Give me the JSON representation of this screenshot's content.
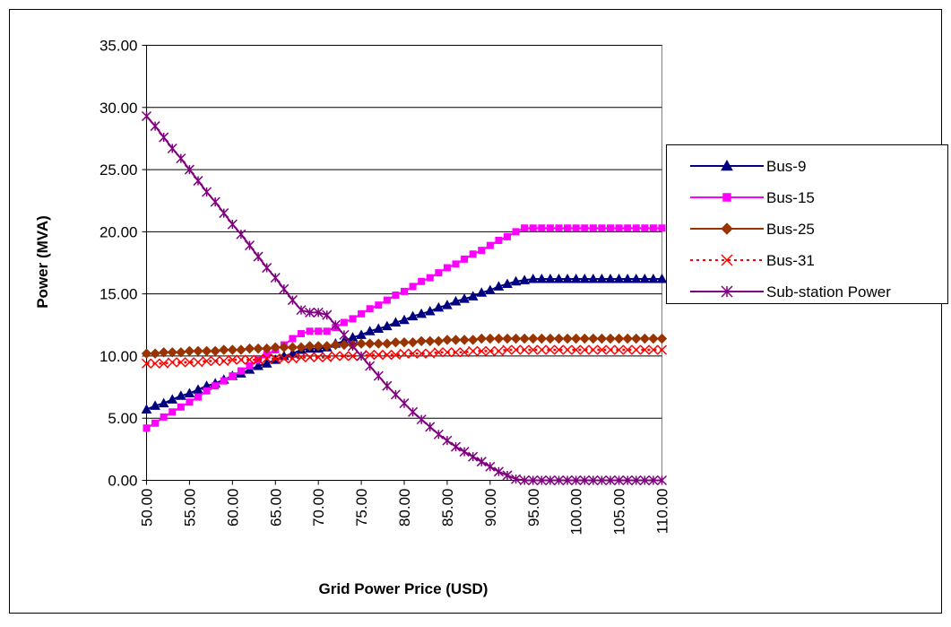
{
  "chart_data": {
    "type": "line",
    "x_label": "Grid Power Price (USD)",
    "y_label": "Power (MVA)",
    "x": [
      50,
      51,
      52,
      53,
      54,
      55,
      56,
      57,
      58,
      59,
      60,
      61,
      62,
      63,
      64,
      65,
      66,
      67,
      68,
      69,
      70,
      71,
      72,
      73,
      74,
      75,
      76,
      77,
      78,
      79,
      80,
      81,
      82,
      83,
      84,
      85,
      86,
      87,
      88,
      89,
      90,
      91,
      92,
      93,
      94,
      95,
      96,
      97,
      98,
      99,
      100,
      101,
      102,
      103,
      104,
      105,
      106,
      107,
      108,
      109,
      110
    ],
    "xlim": [
      50,
      110
    ],
    "xticks": [
      {
        "value": 50,
        "label": "50.00"
      },
      {
        "value": 55,
        "label": "55.00"
      },
      {
        "value": 60,
        "label": "60.00"
      },
      {
        "value": 65,
        "label": "65.00"
      },
      {
        "value": 70,
        "label": "70.00"
      },
      {
        "value": 75,
        "label": "75.00"
      },
      {
        "value": 80,
        "label": "80.00"
      },
      {
        "value": 85,
        "label": "85.00"
      },
      {
        "value": 90,
        "label": "90.00"
      },
      {
        "value": 95,
        "label": "95.00"
      },
      {
        "value": 100,
        "label": "100.00"
      },
      {
        "value": 105,
        "label": "105.00"
      },
      {
        "value": 110,
        "label": "110.00"
      }
    ],
    "ylim": [
      0,
      35
    ],
    "yticks": [
      {
        "value": 0,
        "label": "0.00"
      },
      {
        "value": 5,
        "label": "5.00"
      },
      {
        "value": 10,
        "label": "10.00"
      },
      {
        "value": 15,
        "label": "15.00"
      },
      {
        "value": 20,
        "label": "20.00"
      },
      {
        "value": 25,
        "label": "25.00"
      },
      {
        "value": 30,
        "label": "30.00"
      },
      {
        "value": 35,
        "label": "35.00"
      }
    ],
    "grid": true,
    "legend": "right",
    "series": [
      {
        "name": "Bus-9",
        "color": "#000080",
        "marker": "triangle",
        "dash": "solid",
        "values": [
          5.7,
          6.0,
          6.2,
          6.5,
          6.8,
          7.0,
          7.3,
          7.6,
          7.8,
          8.1,
          8.4,
          8.6,
          8.9,
          9.2,
          9.4,
          9.7,
          10.0,
          10.2,
          10.5,
          10.6,
          10.6,
          10.7,
          11.0,
          11.2,
          11.5,
          11.7,
          12.0,
          12.2,
          12.4,
          12.7,
          12.9,
          13.2,
          13.4,
          13.6,
          13.9,
          14.1,
          14.4,
          14.6,
          14.8,
          15.1,
          15.3,
          15.6,
          15.8,
          16.0,
          16.1,
          16.2,
          16.2,
          16.2,
          16.2,
          16.2,
          16.2,
          16.2,
          16.2,
          16.2,
          16.2,
          16.2,
          16.2,
          16.2,
          16.2,
          16.2,
          16.2
        ]
      },
      {
        "name": "Bus-15",
        "color": "#ff00ff",
        "marker": "square",
        "dash": "solid",
        "values": [
          4.2,
          4.6,
          5.1,
          5.5,
          5.9,
          6.3,
          6.7,
          7.2,
          7.6,
          8.0,
          8.4,
          8.8,
          9.2,
          9.7,
          10.1,
          10.5,
          10.9,
          11.4,
          11.8,
          12.0,
          12.0,
          12.0,
          12.3,
          12.7,
          13.0,
          13.4,
          13.8,
          14.1,
          14.5,
          14.9,
          15.2,
          15.6,
          16.0,
          16.3,
          16.7,
          17.1,
          17.4,
          17.8,
          18.2,
          18.5,
          18.9,
          19.3,
          19.6,
          20.0,
          20.3,
          20.3,
          20.3,
          20.3,
          20.3,
          20.3,
          20.3,
          20.3,
          20.3,
          20.3,
          20.3,
          20.3,
          20.3,
          20.3,
          20.3,
          20.3,
          20.3
        ]
      },
      {
        "name": "Bus-25",
        "color": "#993300",
        "marker": "diamond",
        "dash": "solid",
        "values": [
          10.2,
          10.2,
          10.3,
          10.3,
          10.3,
          10.4,
          10.4,
          10.4,
          10.4,
          10.5,
          10.5,
          10.5,
          10.6,
          10.6,
          10.6,
          10.7,
          10.7,
          10.7,
          10.7,
          10.8,
          10.8,
          10.8,
          10.9,
          10.9,
          10.9,
          11.0,
          11.0,
          11.0,
          11.0,
          11.1,
          11.1,
          11.1,
          11.2,
          11.2,
          11.2,
          11.3,
          11.3,
          11.3,
          11.3,
          11.4,
          11.4,
          11.4,
          11.4,
          11.4,
          11.4,
          11.4,
          11.4,
          11.4,
          11.4,
          11.4,
          11.4,
          11.4,
          11.4,
          11.4,
          11.4,
          11.4,
          11.4,
          11.4,
          11.4,
          11.4,
          11.4
        ]
      },
      {
        "name": "Bus-31",
        "color": "#ff0000",
        "marker": "x",
        "dash": "dotted",
        "values": [
          9.4,
          9.4,
          9.4,
          9.5,
          9.5,
          9.5,
          9.5,
          9.6,
          9.6,
          9.6,
          9.7,
          9.7,
          9.7,
          9.7,
          9.8,
          9.8,
          9.8,
          9.8,
          9.9,
          9.9,
          9.9,
          9.9,
          10.0,
          10.0,
          10.0,
          10.0,
          10.1,
          10.1,
          10.1,
          10.1,
          10.2,
          10.2,
          10.2,
          10.2,
          10.3,
          10.3,
          10.3,
          10.3,
          10.4,
          10.4,
          10.4,
          10.4,
          10.5,
          10.5,
          10.5,
          10.5,
          10.5,
          10.5,
          10.5,
          10.5,
          10.5,
          10.5,
          10.5,
          10.5,
          10.5,
          10.5,
          10.5,
          10.5,
          10.5,
          10.5,
          10.5
        ]
      },
      {
        "name": "Sub-station Power",
        "color": "#800080",
        "marker": "star",
        "dash": "solid",
        "values": [
          29.3,
          28.5,
          27.6,
          26.7,
          25.9,
          25.0,
          24.1,
          23.2,
          22.4,
          21.5,
          20.6,
          19.8,
          18.9,
          18.0,
          17.1,
          16.3,
          15.4,
          14.5,
          13.7,
          13.5,
          13.5,
          13.3,
          12.5,
          11.7,
          10.8,
          10.0,
          9.2,
          8.4,
          7.6,
          6.9,
          6.2,
          5.5,
          4.9,
          4.3,
          3.7,
          3.2,
          2.7,
          2.3,
          1.9,
          1.5,
          1.1,
          0.7,
          0.4,
          0.1,
          0,
          0,
          0,
          0,
          0,
          0,
          0,
          0,
          0,
          0,
          0,
          0,
          0,
          0,
          0,
          0,
          0
        ]
      }
    ]
  }
}
